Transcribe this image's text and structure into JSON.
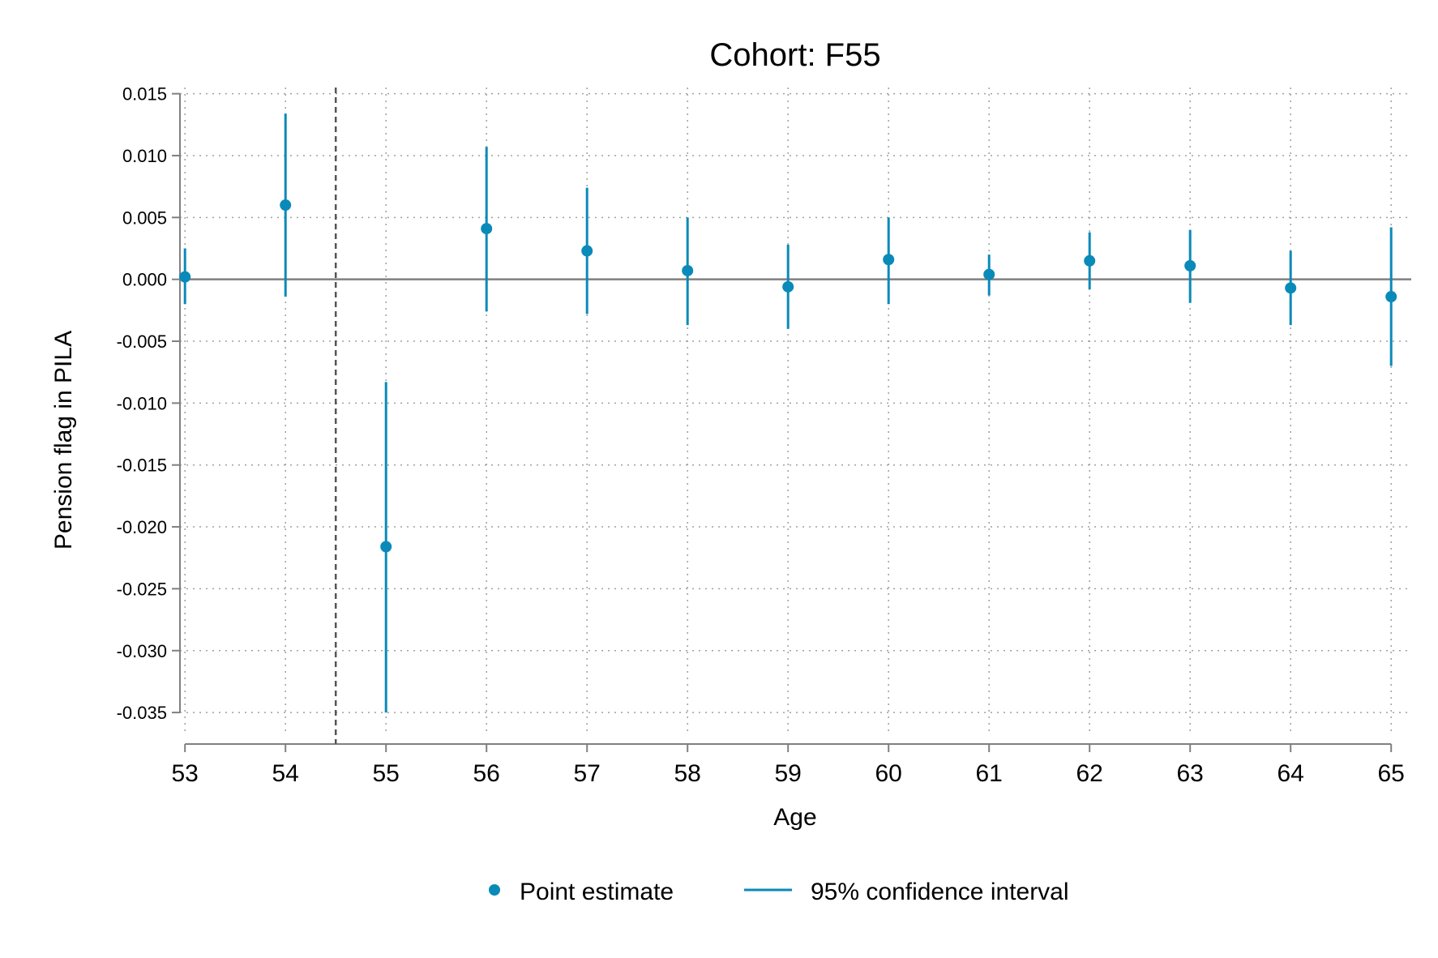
{
  "chart_data": {
    "type": "scatter",
    "title": "Cohort: F55",
    "xlabel": "Age",
    "ylabel": "Pension flag in PILA",
    "x": [
      53,
      54,
      55,
      56,
      57,
      58,
      59,
      60,
      61,
      62,
      63,
      64,
      65
    ],
    "xticks": [
      "53",
      "54",
      "55",
      "56",
      "57",
      "58",
      "59",
      "60",
      "61",
      "62",
      "63",
      "64",
      "65"
    ],
    "xlim": [
      52.95,
      65.2
    ],
    "ylim": [
      -0.0365,
      0.0155
    ],
    "yticks": [
      "0.015",
      "0.010",
      "0.005",
      "0.000",
      "-0.005",
      "-0.010",
      "-0.015",
      "-0.020",
      "-0.025",
      "-0.030",
      "-0.035"
    ],
    "ytick_values": [
      0.015,
      0.01,
      0.005,
      0.0,
      -0.005,
      -0.01,
      -0.015,
      -0.02,
      -0.025,
      -0.03,
      -0.035
    ],
    "grid": true,
    "reference_line_y": 0,
    "reference_line_x": 54.5,
    "legend_position": "bottom",
    "series": [
      {
        "name": "Point estimate",
        "type": "point",
        "color": "#0a8ab8",
        "values": [
          0.0002,
          0.006,
          -0.0216,
          0.0041,
          0.0023,
          0.0007,
          -0.0006,
          0.0016,
          0.0004,
          0.0015,
          0.0011,
          -0.0007,
          -0.0014
        ]
      },
      {
        "name": "95% confidence interval",
        "type": "errorbar",
        "color": "#0a8ab8",
        "lower": [
          -0.002,
          -0.0014,
          -0.035,
          -0.0026,
          -0.0028,
          -0.0037,
          -0.004,
          -0.002,
          -0.0013,
          -0.0008,
          -0.0019,
          -0.0037,
          -0.007
        ],
        "upper": [
          0.0025,
          0.0134,
          -0.0083,
          0.0107,
          0.0074,
          0.005,
          0.0028,
          0.005,
          0.002,
          0.0038,
          0.004,
          0.0023,
          0.0042
        ]
      }
    ],
    "colors": {
      "series": "#0a8ab8",
      "axis": "#808080",
      "grid": "#a0a0a0",
      "reference": "#555555"
    }
  }
}
